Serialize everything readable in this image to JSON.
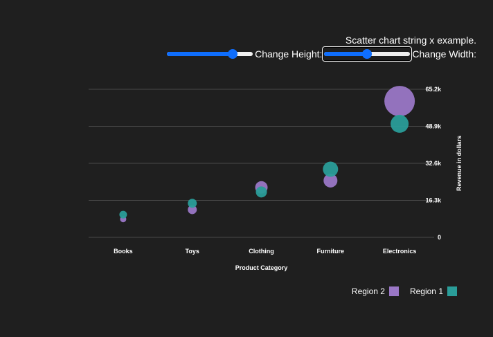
{
  "page": {
    "title": ".Scatter chart string x example"
  },
  "controls": {
    "width": {
      "label": ":Change Width",
      "value": 0.5
    },
    "height": {
      "label": ":Change Height",
      "value": 0.8
    }
  },
  "colors": {
    "background": "#1f1f1f",
    "grid": "#4a4a4a",
    "region1": "#2a9d99",
    "region2": "#9a77c6",
    "accent": "#0f6efd"
  },
  "legend": [
    {
      "name": "Region 1",
      "color": "#2a9d99"
    },
    {
      "name": "Region 2",
      "color": "#9a77c6"
    }
  ],
  "chart_data": {
    "type": "scatter",
    "title": ".Scatter chart string x example",
    "xlabel": "Product Category",
    "ylabel": "Revenue in dollars",
    "categories": [
      "Books",
      "Toys",
      "Clothing",
      "Furniture",
      "Electronics"
    ],
    "y_ticks": [
      "0",
      "16.3k",
      "32.6k",
      "48.9k",
      "65.2k"
    ],
    "y_tick_values": [
      0,
      16300,
      32600,
      48900,
      65200
    ],
    "ylim": [
      0,
      65200
    ],
    "y_axis_side": "right",
    "grid": true,
    "legend_position": "bottom-right",
    "series": [
      {
        "name": "Region 2",
        "color": "#9a77c6",
        "values": [
          8000,
          12200,
          22000,
          25000,
          60000
        ],
        "sizes": [
          5,
          9,
          14,
          16,
          40
        ]
      },
      {
        "name": "Region 1",
        "color": "#2a9d99",
        "values": [
          10000,
          15000,
          20000,
          30000,
          50000
        ],
        "sizes": [
          7,
          9,
          12,
          18,
          22
        ]
      }
    ]
  }
}
